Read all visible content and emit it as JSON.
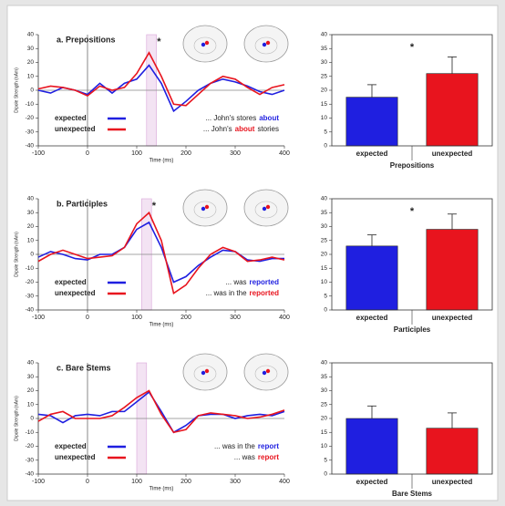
{
  "chart_data": [
    {
      "type": "line",
      "title": "a. Prepositions",
      "xlabel": "Time (ms)",
      "ylabel": "Dipole Strength (nAm)",
      "x": [
        -100,
        -75,
        -50,
        -25,
        0,
        25,
        50,
        75,
        100,
        125,
        150,
        175,
        200,
        225,
        250,
        275,
        300,
        325,
        350,
        375,
        400
      ],
      "xlim": [
        -100,
        400
      ],
      "xticks": [
        -100,
        0,
        100,
        200,
        300,
        400
      ],
      "ylim": [
        -40,
        40
      ],
      "yticks": [
        -40,
        -30,
        -20,
        -10,
        0,
        10,
        20,
        30,
        40
      ],
      "highlight": [
        120,
        140
      ],
      "annotations": [
        "*"
      ],
      "series": [
        {
          "name": "expected",
          "color": "#1f1fe0",
          "values": [
            0,
            -2,
            2,
            0,
            -3,
            5,
            -2,
            5,
            8,
            18,
            5,
            -15,
            -8,
            0,
            5,
            8,
            6,
            3,
            -1,
            -3,
            0
          ]
        },
        {
          "name": "unexpected",
          "color": "#e8141e",
          "values": [
            1,
            3,
            2,
            0,
            -4,
            3,
            0,
            2,
            12,
            27,
            10,
            -10,
            -11,
            -3,
            5,
            10,
            8,
            2,
            -3,
            2,
            4
          ]
        }
      ],
      "sentences": [
        [
          {
            "text": "... John's stores",
            "color": "#222222"
          },
          {
            "text": "about",
            "color": "#1f1fe0"
          }
        ],
        [
          {
            "text": "... John's",
            "color": "#222222"
          },
          {
            "text": "about",
            "color": "#e8141e"
          },
          {
            "text": "stories",
            "color": "#222222"
          }
        ]
      ]
    },
    {
      "type": "bar",
      "xlabel": "Prepositions",
      "categories": [
        "expected",
        "unexpected"
      ],
      "values": [
        17.5,
        26
      ],
      "errors": [
        4.5,
        6
      ],
      "colors": [
        "#1f1fe0",
        "#e8141e"
      ],
      "ylim": [
        0,
        40
      ],
      "yticks": [
        0,
        5,
        10,
        15,
        20,
        25,
        30,
        35,
        40
      ],
      "annotations": [
        "*"
      ]
    },
    {
      "type": "line",
      "title": "b. Participles",
      "xlabel": "Time (ms)",
      "ylabel": "Dipole Strength (nAm)",
      "x": [
        -100,
        -75,
        -50,
        -25,
        0,
        25,
        50,
        75,
        100,
        125,
        150,
        175,
        200,
        225,
        250,
        275,
        300,
        325,
        350,
        375,
        400
      ],
      "xlim": [
        -100,
        400
      ],
      "xticks": [
        -100,
        0,
        100,
        200,
        300,
        400
      ],
      "ylim": [
        -40,
        40
      ],
      "yticks": [
        -40,
        -30,
        -20,
        -10,
        0,
        10,
        20,
        30,
        40
      ],
      "highlight": [
        110,
        130
      ],
      "annotations": [
        "*"
      ],
      "series": [
        {
          "name": "expected",
          "color": "#1f1fe0",
          "values": [
            -2,
            2,
            0,
            -3,
            -4,
            0,
            0,
            5,
            18,
            23,
            5,
            -20,
            -16,
            -8,
            -2,
            3,
            2,
            -4,
            -5,
            -3,
            -3
          ]
        },
        {
          "name": "unexpected",
          "color": "#e8141e",
          "values": [
            -5,
            0,
            3,
            0,
            -3,
            -2,
            -1,
            5,
            22,
            30,
            10,
            -28,
            -22,
            -10,
            0,
            5,
            2,
            -5,
            -4,
            -2,
            -4
          ]
        }
      ],
      "sentences": [
        [
          {
            "text": "... was",
            "color": "#222222"
          },
          {
            "text": "reported",
            "color": "#1f1fe0"
          }
        ],
        [
          {
            "text": "... was in the",
            "color": "#222222"
          },
          {
            "text": "reported",
            "color": "#e8141e"
          }
        ]
      ]
    },
    {
      "type": "bar",
      "xlabel": "Participles",
      "categories": [
        "expected",
        "unexpected"
      ],
      "values": [
        23,
        29
      ],
      "errors": [
        4,
        5.5
      ],
      "colors": [
        "#1f1fe0",
        "#e8141e"
      ],
      "ylim": [
        0,
        40
      ],
      "yticks": [
        0,
        5,
        10,
        15,
        20,
        25,
        30,
        35,
        40
      ],
      "annotations": [
        "*"
      ]
    },
    {
      "type": "line",
      "title": "c. Bare Stems",
      "xlabel": "Time (ms)",
      "ylabel": "Dipole Strength (nAm)",
      "x": [
        -100,
        -75,
        -50,
        -25,
        0,
        25,
        50,
        75,
        100,
        125,
        150,
        175,
        200,
        225,
        250,
        275,
        300,
        325,
        350,
        375,
        400
      ],
      "xlim": [
        -100,
        400
      ],
      "xticks": [
        -100,
        0,
        100,
        200,
        300,
        400
      ],
      "ylim": [
        -40,
        40
      ],
      "yticks": [
        -40,
        -30,
        -20,
        -10,
        0,
        10,
        20,
        30,
        40
      ],
      "highlight": [
        100,
        120
      ],
      "series": [
        {
          "name": "expected",
          "color": "#1f1fe0",
          "values": [
            3,
            2,
            -3,
            2,
            3,
            2,
            5,
            5,
            12,
            19,
            5,
            -10,
            -5,
            2,
            3,
            3,
            0,
            2,
            3,
            2,
            5
          ]
        },
        {
          "name": "unexpected",
          "color": "#e8141e",
          "values": [
            -2,
            3,
            5,
            0,
            0,
            0,
            2,
            8,
            15,
            20,
            3,
            -10,
            -8,
            2,
            4,
            3,
            2,
            0,
            1,
            3,
            6
          ]
        }
      ],
      "sentences": [
        [
          {
            "text": "... was in the",
            "color": "#222222"
          },
          {
            "text": "report",
            "color": "#1f1fe0"
          }
        ],
        [
          {
            "text": "... was",
            "color": "#222222"
          },
          {
            "text": "report",
            "color": "#e8141e"
          }
        ]
      ]
    },
    {
      "type": "bar",
      "xlabel": "Bare Stems",
      "categories": [
        "expected",
        "unexpected"
      ],
      "values": [
        20,
        16.5
      ],
      "errors": [
        4.5,
        5.5
      ],
      "colors": [
        "#1f1fe0",
        "#e8141e"
      ],
      "ylim": [
        0,
        40
      ],
      "yticks": [
        0,
        5,
        10,
        15,
        20,
        25,
        30,
        35,
        40
      ]
    }
  ]
}
